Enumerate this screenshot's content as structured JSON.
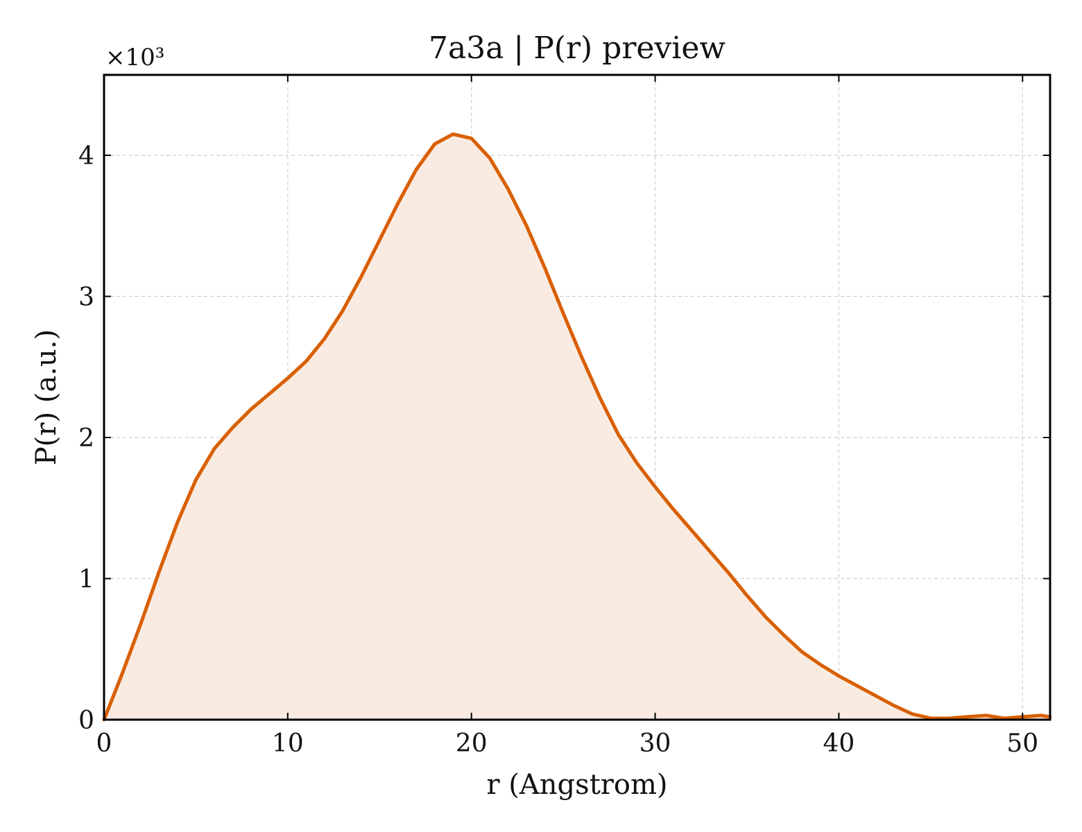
{
  "chart_data": {
    "type": "area",
    "title": "7a3a | P(r) preview",
    "xlabel": "r (Angstrom)",
    "ylabel": "P(r) (a.u.)",
    "y_scale_factor_label": "×10³",
    "xlim": [
      0,
      51.5
    ],
    "ylim": [
      0,
      4.57
    ],
    "xticks": [
      0,
      10,
      20,
      30,
      40,
      50
    ],
    "xtick_labels": [
      "0",
      "10",
      "20",
      "30",
      "40",
      "50"
    ],
    "yticks": [
      0,
      1,
      2,
      3,
      4
    ],
    "ytick_labels": [
      "0",
      "1",
      "2",
      "3",
      "4"
    ],
    "grid": true,
    "series": [
      {
        "color": "#d95f02",
        "fill_color": "#f9ebe1",
        "x": [
          0,
          1,
          2,
          3,
          4,
          5,
          6,
          7,
          8,
          9,
          10,
          11,
          12,
          13,
          14,
          15,
          16,
          17,
          18,
          19,
          20,
          21,
          22,
          23,
          24,
          25,
          26,
          27,
          28,
          29,
          30,
          31,
          32,
          33,
          34,
          35,
          36,
          37,
          38,
          39,
          40,
          41,
          42,
          43,
          44,
          45,
          46,
          47,
          48,
          49,
          50,
          51,
          51.5
        ],
        "y": [
          0,
          0.33,
          0.68,
          1.05,
          1.4,
          1.7,
          1.92,
          2.07,
          2.2,
          2.31,
          2.42,
          2.54,
          2.7,
          2.9,
          3.14,
          3.4,
          3.66,
          3.9,
          4.08,
          4.15,
          4.12,
          3.98,
          3.76,
          3.5,
          3.2,
          2.88,
          2.57,
          2.28,
          2.02,
          1.82,
          1.65,
          1.49,
          1.34,
          1.19,
          1.04,
          0.88,
          0.73,
          0.6,
          0.48,
          0.39,
          0.31,
          0.24,
          0.17,
          0.1,
          0.04,
          0.01,
          0.01,
          0.02,
          0.03,
          0.01,
          0.02,
          0.03,
          0.02
        ]
      }
    ]
  }
}
